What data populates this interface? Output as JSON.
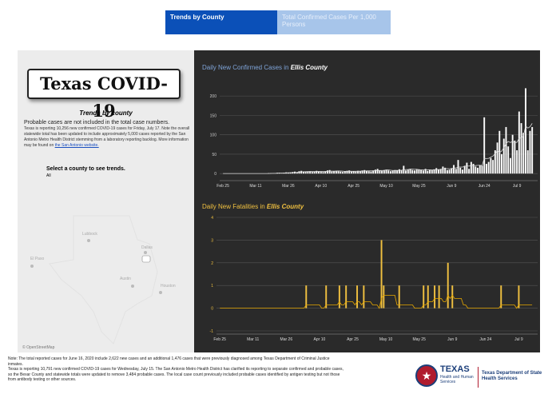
{
  "tabs": [
    {
      "label": "Trends by County"
    },
    {
      "label": "Total Confirmed Cases Per 1,000 Persons"
    }
  ],
  "left_panel": {
    "logo_text": "Texas COVID-19",
    "heading": "Trends by county",
    "note": "Probable cases are not included in the total case numbers.",
    "info": "Texas is reporting 10,256 new confirmed COVID-19 cases for Friday, July 17. Note the overall statewide total has been updated to include approximately 5,000 cases reported by the San Antonio Metro Health District stemming from a laboratory reporting backlog. More information may be found on",
    "info_link": "the San Antonio website.",
    "select_label": "Select a county to see trends.",
    "select_value": "All",
    "map_cities": [
      "Lubbock",
      "Dallas",
      "El Paso",
      "Austin",
      "Houston"
    ],
    "map_credit": "© OpenStreetMap"
  },
  "chart1_title": {
    "prefix": "Daily New Confirmed Cases in ",
    "county": "Ellis County"
  },
  "chart2_title": {
    "prefix": "Daily New Fatalities in ",
    "county": "Ellis County"
  },
  "footer": {
    "line1": "Note: The total reported cases for June 16, 2020 include 2,622 new cases and an additional 1,476 cases that were previously diagnosed among Texas Department of Criminal Justice inmates.",
    "line2": "Texas is reporting 10,791 new confirmed COVID-19 cases for Wednesday, July 15. The San Antonio Metro Health District has clarified its reporting to separate confirmed and probable cases, so the Bexar County and statewide totals were updated to remove 3,484 probable cases. The local case count previously included probable cases identified by antigen testing but not those from antibody testing or other sources."
  },
  "branding": {
    "texas": "TEXAS",
    "hhs": "Health and Human Services",
    "dshs": "Texas Department of State Health Services"
  },
  "colors": {
    "cases_series": "#ffffff",
    "fatalities_series": "#f0c040",
    "dash_bg": "#2a2a2a"
  },
  "chart_data": [
    {
      "type": "bar",
      "title": "Daily New Confirmed Cases in Ellis County",
      "x_ticks": [
        "Feb 25",
        "Mar 11",
        "Mar 26",
        "Apr 10",
        "Apr 25",
        "May 10",
        "May 25",
        "Jun 9",
        "Jun 24",
        "Jul 9",
        "Jul 24"
      ],
      "y_ticks": [
        0,
        50,
        100,
        150,
        200
      ],
      "ylim": [
        -10,
        225
      ],
      "x_start": "2020-02-25",
      "series": [
        {
          "values": [
            0,
            0,
            0,
            0,
            0,
            0,
            0,
            0,
            0,
            0,
            0,
            0,
            0,
            0,
            0,
            0,
            0,
            0,
            0,
            0,
            0,
            1,
            1,
            1,
            1,
            2,
            2,
            1,
            2,
            3,
            2,
            3,
            4,
            5,
            3,
            6,
            7,
            5,
            4,
            5,
            6,
            4,
            5,
            7,
            6,
            5,
            4,
            6,
            8,
            9,
            5,
            6,
            7,
            6,
            5,
            4,
            6,
            7,
            8,
            5,
            6,
            5,
            7,
            6,
            8,
            9,
            7,
            6,
            5,
            8,
            10,
            12,
            8,
            7,
            9,
            10,
            8,
            6,
            7,
            9,
            8,
            11,
            9,
            20,
            8,
            10,
            12,
            9,
            8,
            10,
            11,
            9,
            8,
            12,
            7,
            10,
            9,
            11,
            14,
            10,
            12,
            18,
            15,
            9,
            10,
            14,
            22,
            12,
            35,
            15,
            10,
            20,
            28,
            12,
            30,
            25,
            18,
            15,
            22,
            20,
            145,
            25,
            30,
            40,
            35,
            60,
            80,
            110,
            50,
            90,
            120,
            70,
            40,
            100,
            85,
            60,
            160,
            130,
            105,
            220,
            60,
            110,
            120
          ]
        }
      ]
    },
    {
      "type": "bar",
      "title": "Daily New Fatalities in Ellis County",
      "x_ticks": [
        "Feb 25",
        "Mar 11",
        "Mar 26",
        "Apr 10",
        "Apr 25",
        "May 10",
        "May 25",
        "Jun 9",
        "Jun 24",
        "Jul 9",
        "Jul 24"
      ],
      "y_ticks": [
        -1,
        0,
        1,
        2,
        3,
        4
      ],
      "ylim": [
        -1,
        4
      ],
      "x_start": "2020-02-25",
      "series": [
        {
          "values": [
            0,
            0,
            0,
            0,
            0,
            0,
            0,
            0,
            0,
            0,
            0,
            0,
            0,
            0,
            0,
            0,
            0,
            0,
            0,
            0,
            0,
            0,
            0,
            0,
            0,
            0,
            0,
            0,
            0,
            0,
            0,
            0,
            0,
            0,
            0,
            0,
            0,
            0,
            0,
            1,
            0,
            0,
            0,
            0,
            0,
            0,
            0,
            0,
            1,
            0,
            0,
            0,
            0,
            0,
            1,
            0,
            0,
            1,
            0,
            0,
            0,
            0,
            1,
            0,
            0,
            1,
            0,
            0,
            0,
            0,
            0,
            0,
            0,
            3,
            1,
            0,
            0,
            0,
            0,
            0,
            0,
            1,
            0,
            0,
            0,
            0,
            0,
            0,
            0,
            0,
            0,
            0,
            1,
            0,
            1,
            0,
            0,
            1,
            0,
            1,
            0,
            0,
            0,
            2,
            0,
            1,
            0,
            0,
            0,
            0,
            0,
            0,
            0,
            0,
            0,
            0,
            0,
            0,
            0,
            0,
            0,
            0,
            0,
            0,
            0,
            0,
            0,
            1,
            0,
            0,
            0,
            0,
            0,
            0,
            0,
            1,
            0,
            0,
            0,
            0,
            0,
            0
          ]
        }
      ]
    }
  ]
}
